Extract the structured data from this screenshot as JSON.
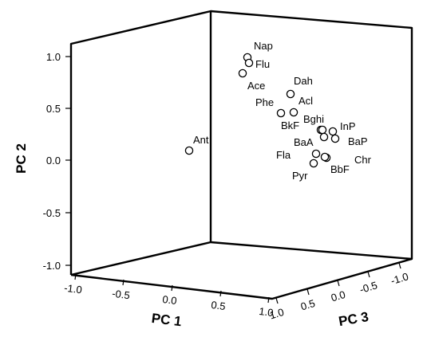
{
  "chart_data": {
    "type": "scatter",
    "projection": "3d",
    "xlabel": "PC 1",
    "ylabel": "PC 2",
    "zlabel": "PC 3",
    "x_ticks": [
      "-1.0",
      "-0.5",
      "0.0",
      "0.5",
      "1.0"
    ],
    "y_ticks": [
      "-1.0",
      "-0.5",
      "0.0",
      "0.5",
      "1.0"
    ],
    "z_ticks": [
      "1.0",
      "0.5",
      "0.0",
      "-0.5",
      "-1.0"
    ],
    "xlim": [
      -1.0,
      1.0
    ],
    "ylim": [
      -1.0,
      1.0
    ],
    "zlim": [
      -1.0,
      1.0
    ],
    "grid": false,
    "legend": "none",
    "points": [
      {
        "label": "Nap",
        "y": 0.99
      },
      {
        "label": "Flu",
        "y": 0.95
      },
      {
        "label": "Ace",
        "y": 0.83
      },
      {
        "label": "Dah",
        "y": 0.63
      },
      {
        "label": "Acl",
        "y": 0.47
      },
      {
        "label": "Phe",
        "y": 0.45
      },
      {
        "label": "Bghi",
        "y": 0.3
      },
      {
        "label": "BkF",
        "y": 0.28
      },
      {
        "label": "InP",
        "y": 0.28
      },
      {
        "label": "BaA",
        "y": 0.22
      },
      {
        "label": "BaP",
        "y": 0.2
      },
      {
        "label": "Ant",
        "y": 0.1
      },
      {
        "label": "Fla",
        "y": 0.07
      },
      {
        "label": "BbF",
        "y": 0.02
      },
      {
        "label": "Chr",
        "y": 0.02
      },
      {
        "label": "Pyr",
        "y": -0.02
      }
    ]
  }
}
